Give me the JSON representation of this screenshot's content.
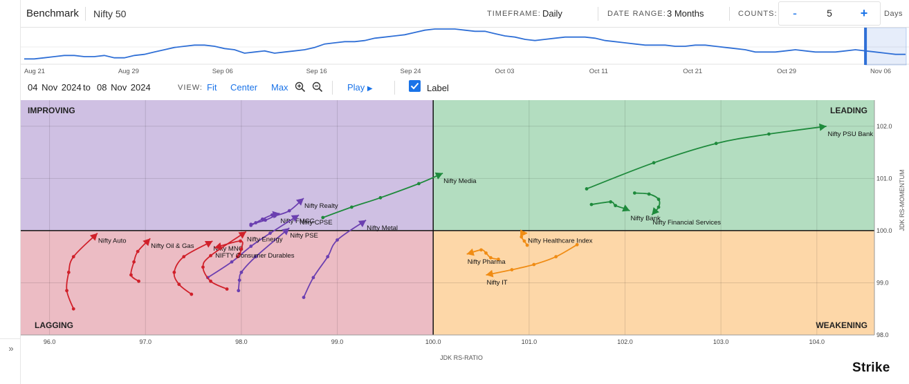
{
  "header": {
    "benchmark_label": "Benchmark",
    "benchmark_value": "Nifty 50",
    "timeframe_label": "TIMEFRAME:",
    "timeframe_value": "Daily",
    "date_range_label": "DATE RANGE:",
    "date_range_value": "3 Months",
    "counts_label": "COUNTS:",
    "counts_minus": "-",
    "counts_value": "5",
    "counts_plus": "+",
    "days_label": "Days"
  },
  "overview": {
    "date_labels": [
      "Aug 21",
      "Aug 29",
      "Sep 06",
      "Sep 16",
      "Sep 24",
      "Oct 03",
      "Oct 11",
      "Oct 21",
      "Oct 29",
      "Nov 06"
    ],
    "values": [
      74,
      74,
      75,
      76,
      77,
      77,
      76,
      76,
      77,
      75,
      75,
      77,
      78,
      80,
      82,
      84,
      85,
      86,
      86,
      85,
      83,
      82,
      79,
      80,
      81,
      79,
      80,
      81,
      82,
      84,
      87,
      88,
      89,
      89,
      90,
      92,
      93,
      94,
      95,
      97,
      99,
      100,
      100,
      100,
      99,
      98,
      98,
      96,
      94,
      93,
      91,
      90,
      91,
      92,
      93,
      93,
      93,
      92,
      90,
      89,
      88,
      87,
      86,
      86,
      86,
      85,
      85,
      86,
      86,
      85,
      84,
      83,
      82,
      80,
      80,
      80,
      81,
      82,
      81,
      80,
      80,
      80,
      81,
      82,
      81,
      80,
      79,
      78,
      78
    ],
    "selection_start_index": 84,
    "line_color": "#2f6fd6",
    "selection_color": "#2f6fd6"
  },
  "toolbar": {
    "date_from": "04  Nov  2024",
    "to_label": "to",
    "date_to": "08  Nov  2024",
    "view_label": "VIEW:",
    "fit_label": "Fit",
    "center_label": "Center",
    "max_label": "Max",
    "zoom_in_icon": "zoom-in-icon",
    "zoom_out_icon": "zoom-out-icon",
    "play_label": "Play",
    "label_checkbox_checked": true,
    "label_text": "Label"
  },
  "chart_data": {
    "type": "scatter",
    "subtype": "relative-rotation-graph",
    "xlabel": "JDK RS-RATIO",
    "ylabel": "JDK RS-MOMENTUM",
    "xlim": [
      95.7,
      104.6
    ],
    "ylim": [
      98.0,
      102.5
    ],
    "x_ticks": [
      96.0,
      97.0,
      98.0,
      99.0,
      100.0,
      101.0,
      102.0,
      103.0,
      104.0
    ],
    "y_ticks": [
      98.0,
      99.0,
      100.0,
      101.0,
      102.0
    ],
    "center": [
      100.0,
      100.0
    ],
    "grid": true,
    "quadrants": {
      "improving": {
        "label": "IMPROVING",
        "color": "#cfc0e3"
      },
      "leading": {
        "label": "LEADING",
        "color": "#b3ddc0"
      },
      "lagging": {
        "label": "LAGGING",
        "color": "#ecbcc4"
      },
      "weakening": {
        "label": "WEAKENING",
        "color": "#fdd7a8"
      }
    },
    "series": [
      {
        "name": "Nifty PSU Bank",
        "color": "#1e8a3c",
        "points": [
          [
            101.6,
            100.8
          ],
          [
            102.3,
            101.3
          ],
          [
            102.95,
            101.67
          ],
          [
            103.5,
            101.85
          ],
          [
            104.1,
            102.0
          ]
        ]
      },
      {
        "name": "Nifty Media",
        "color": "#1e8a3c",
        "points": [
          [
            98.85,
            100.25
          ],
          [
            99.15,
            100.45
          ],
          [
            99.45,
            100.63
          ],
          [
            99.85,
            100.9
          ],
          [
            100.1,
            101.1
          ]
        ]
      },
      {
        "name": "Nifty Bank",
        "color": "#1e8a3c",
        "points": [
          [
            101.65,
            100.5
          ],
          [
            101.85,
            100.55
          ],
          [
            101.9,
            100.48
          ],
          [
            102.0,
            100.42
          ],
          [
            102.05,
            100.38
          ]
        ]
      },
      {
        "name": "Nifty Financial Services",
        "color": "#1e8a3c",
        "points": [
          [
            102.1,
            100.72
          ],
          [
            102.25,
            100.7
          ],
          [
            102.35,
            100.6
          ],
          [
            102.35,
            100.45
          ],
          [
            102.28,
            100.3
          ]
        ]
      },
      {
        "name": "Nifty Realty",
        "color": "#6b3fb0",
        "points": [
          [
            98.1,
            100.12
          ],
          [
            98.25,
            100.2
          ],
          [
            98.35,
            100.28
          ],
          [
            98.5,
            100.38
          ],
          [
            98.65,
            100.62
          ]
        ]
      },
      {
        "name": "Nifty FMCG",
        "color": "#6b3fb0",
        "points": [
          [
            98.1,
            100.1
          ],
          [
            98.15,
            100.15
          ],
          [
            98.22,
            100.22
          ],
          [
            98.32,
            100.3
          ],
          [
            98.4,
            100.33
          ]
        ]
      },
      {
        "name": "Nifty CPSE",
        "color": "#6b3fb0",
        "points": [
          [
            97.65,
            99.1
          ],
          [
            97.9,
            99.4
          ],
          [
            98.1,
            99.7
          ],
          [
            98.3,
            99.95
          ],
          [
            98.6,
            100.3
          ]
        ]
      },
      {
        "name": "Nifty PSE",
        "color": "#6b3fb0",
        "points": [
          [
            97.97,
            98.85
          ],
          [
            97.98,
            99.05
          ],
          [
            98.0,
            99.2
          ],
          [
            98.15,
            99.5
          ],
          [
            98.5,
            100.05
          ]
        ]
      },
      {
        "name": "Nifty Metal",
        "color": "#6b3fb0",
        "points": [
          [
            98.65,
            98.72
          ],
          [
            98.75,
            99.1
          ],
          [
            98.9,
            99.5
          ],
          [
            99.0,
            99.82
          ],
          [
            99.3,
            100.2
          ]
        ]
      },
      {
        "name": "Nifty Auto",
        "color": "#d0202a",
        "points": [
          [
            96.25,
            98.5
          ],
          [
            96.18,
            98.85
          ],
          [
            96.2,
            99.2
          ],
          [
            96.25,
            99.5
          ],
          [
            96.5,
            99.95
          ]
        ]
      },
      {
        "name": "Nifty Oil & Gas",
        "color": "#d0202a",
        "points": [
          [
            96.93,
            99.03
          ],
          [
            96.85,
            99.15
          ],
          [
            96.88,
            99.4
          ],
          [
            96.92,
            99.6
          ],
          [
            97.05,
            99.85
          ]
        ]
      },
      {
        "name": "Nifty MNC",
        "color": "#d0202a",
        "points": [
          [
            97.48,
            98.78
          ],
          [
            97.35,
            98.97
          ],
          [
            97.3,
            99.2
          ],
          [
            97.4,
            99.5
          ],
          [
            97.7,
            99.8
          ]
        ]
      },
      {
        "name": "Nifty Energy",
        "color": "#d0202a",
        "points": [
          [
            97.85,
            98.88
          ],
          [
            97.68,
            99.03
          ],
          [
            97.6,
            99.3
          ],
          [
            97.68,
            99.52
          ],
          [
            98.05,
            99.98
          ]
        ]
      },
      {
        "name": "NIFTY Consumer Durables",
        "color": "#d0202a",
        "points": [
          [
            97.96,
            99.5
          ],
          [
            97.98,
            99.55
          ],
          [
            98.0,
            99.65
          ],
          [
            97.99,
            99.8
          ],
          [
            97.72,
            99.67
          ]
        ]
      },
      {
        "name": "Nifty Healthcare Index",
        "color": "#f08c14",
        "points": [
          [
            100.98,
            99.72
          ],
          [
            100.95,
            99.8
          ],
          [
            100.92,
            99.88
          ],
          [
            100.95,
            99.95
          ],
          [
            100.98,
            99.95
          ]
        ]
      },
      {
        "name": "Nifty Pharma",
        "color": "#f08c14",
        "points": [
          [
            100.68,
            99.45
          ],
          [
            100.6,
            99.48
          ],
          [
            100.55,
            99.57
          ],
          [
            100.5,
            99.63
          ],
          [
            100.35,
            99.55
          ]
        ]
      },
      {
        "name": "Nifty IT",
        "color": "#f08c14",
        "points": [
          [
            101.5,
            99.73
          ],
          [
            101.28,
            99.5
          ],
          [
            101.05,
            99.35
          ],
          [
            100.82,
            99.25
          ],
          [
            100.55,
            99.15
          ]
        ]
      }
    ]
  },
  "branding": {
    "text": "Strike"
  }
}
